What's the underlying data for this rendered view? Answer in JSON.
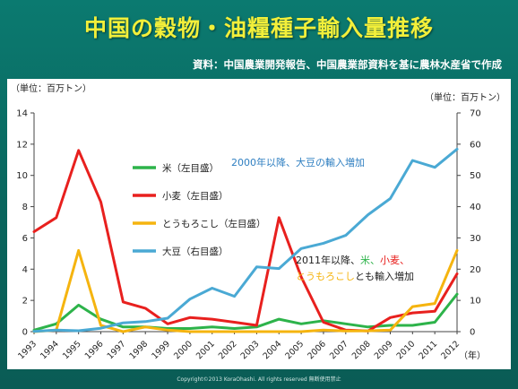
{
  "title": "中国の穀物・油糧種子輸入量推移",
  "source": "資料：中国農業開発報告、中国農業部資料を基に農林水産省で作成",
  "copyright": "Copyright©2013 KoraOhashi. All rights reserved 無断使用禁止",
  "chart_data": {
    "type": "line",
    "x": [
      "1993",
      "1994",
      "1995",
      "1996",
      "1997",
      "1998",
      "1999",
      "2000",
      "2001",
      "2002",
      "2003",
      "2004",
      "2005",
      "2006",
      "2007",
      "2008",
      "2009",
      "2010",
      "2011",
      "2012"
    ],
    "xunit": "（年）",
    "y_left_unit": "（単位：百万トン）",
    "y_right_unit": "（単位：百万トン）",
    "y_left_lim": [
      0,
      14
    ],
    "y_right_lim": [
      0,
      70
    ],
    "y_left_ticks": [
      "0",
      "2",
      "4",
      "6",
      "8",
      "10",
      "12",
      "14"
    ],
    "y_right_ticks": [
      "0",
      "10",
      "20",
      "30",
      "40",
      "50",
      "60",
      "70"
    ],
    "series": [
      {
        "name": "米（左目盛）",
        "color": "#2db34a",
        "axis": "left",
        "values": [
          0.1,
          0.5,
          1.7,
          0.8,
          0.3,
          0.3,
          0.2,
          0.2,
          0.3,
          0.2,
          0.3,
          0.8,
          0.5,
          0.7,
          0.5,
          0.3,
          0.4,
          0.4,
          0.6,
          2.4
        ]
      },
      {
        "name": "小麦（左目盛）",
        "color": "#e8201e",
        "axis": "left",
        "values": [
          6.4,
          7.3,
          11.6,
          8.3,
          1.9,
          1.5,
          0.5,
          0.9,
          0.8,
          0.6,
          0.4,
          7.3,
          3.5,
          0.6,
          0.1,
          0.04,
          0.9,
          1.2,
          1.3,
          3.7
        ]
      },
      {
        "name": "とうもろこし（左目盛）",
        "color": "#f5b40f",
        "axis": "left",
        "values": [
          0.0,
          0.1,
          5.2,
          0.4,
          0.0,
          0.3,
          0.1,
          0.0,
          0.0,
          0.0,
          0.0,
          0.0,
          0.0,
          0.1,
          0.04,
          0.05,
          0.1,
          1.6,
          1.8,
          5.2
        ]
      },
      {
        "name": "大豆（右目盛）",
        "color": "#4aa9d4",
        "axis": "right",
        "values": [
          0.1,
          0.5,
          0.3,
          1.1,
          2.8,
          3.2,
          4.3,
          10.4,
          13.9,
          11.3,
          20.7,
          20.2,
          26.6,
          28.3,
          30.8,
          37.4,
          42.6,
          54.8,
          52.6,
          58.4
        ]
      }
    ],
    "annotations": {
      "soy": "2000年以降、大豆の輸入増加",
      "grain_prefix": "2011年以降、",
      "grain_rice": "米、",
      "grain_wheat": "小麦、",
      "grain_corn": "とうもろこし",
      "grain_suffix": "とも輸入増加"
    }
  }
}
